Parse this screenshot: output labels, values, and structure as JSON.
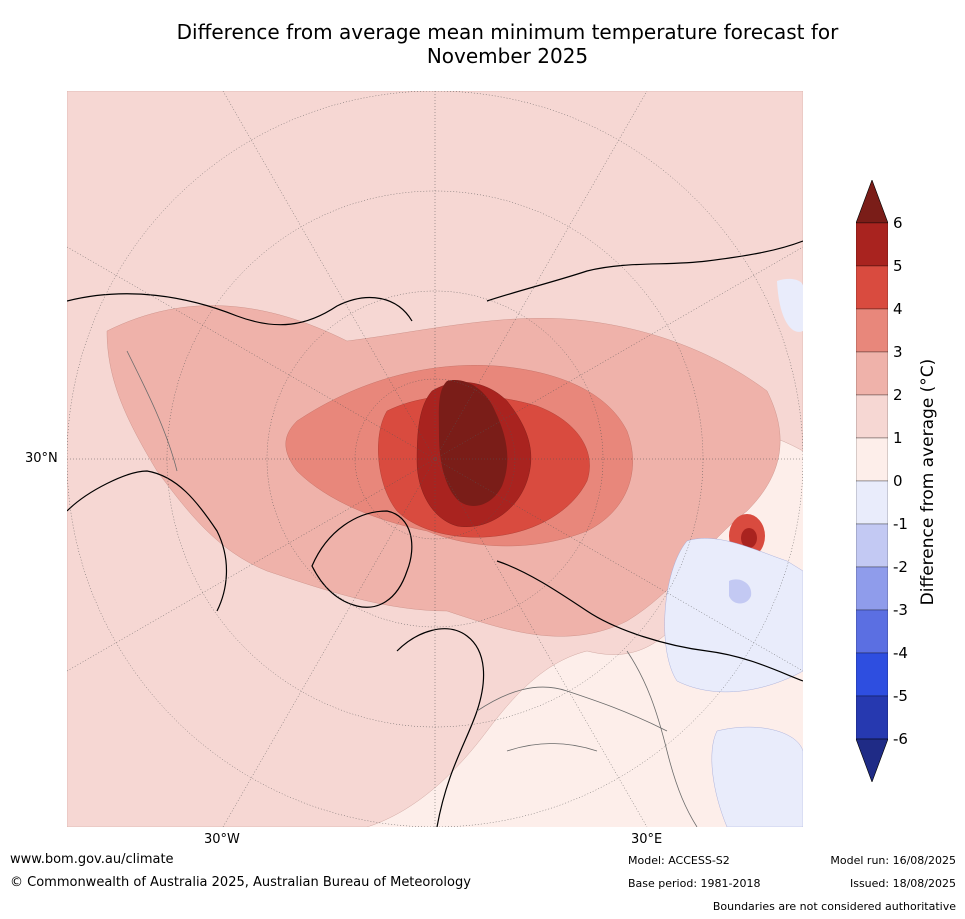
{
  "title_line1": "Difference from average mean minimum temperature forecast for",
  "title_line2": "November 2025",
  "map": {
    "projection": "north-polar-stereographic",
    "ticks": {
      "lat_30n": "30°N",
      "lon_30w": "30°W",
      "lon_30e": "30°E"
    }
  },
  "colorbar": {
    "title": "Difference from average ($^\\circ$C)",
    "title_display": "Difference from average (°C)",
    "tick_labels": [
      "6",
      "5",
      "4",
      "3",
      "2",
      "1",
      "0",
      "-1",
      "-2",
      "-3",
      "-4",
      "-5",
      "-6"
    ],
    "colors_top_to_bottom": [
      "#7a1d18",
      "#a9231f",
      "#d94b3f",
      "#e8877b",
      "#efb2aa",
      "#f6d7d3",
      "#fdeeea",
      "#e9ecfb",
      "#c3c9f3",
      "#8f9ceb",
      "#5b6fe2",
      "#2e4ee0",
      "#2639b0",
      "#1f2b86"
    ],
    "extend": "both"
  },
  "footer": {
    "website": "www.bom.gov.au/climate",
    "copyright": "© Commonwealth of Australia 2025, Australian Bureau of Meteorology",
    "model": "Model: ACCESS-S2",
    "base_period": "Base period: 1981-2018",
    "model_run": "Model run: 16/08/2025",
    "issued": "Issued: 18/08/2025",
    "disclaimer": "Boundaries are not considered authoritative"
  }
}
